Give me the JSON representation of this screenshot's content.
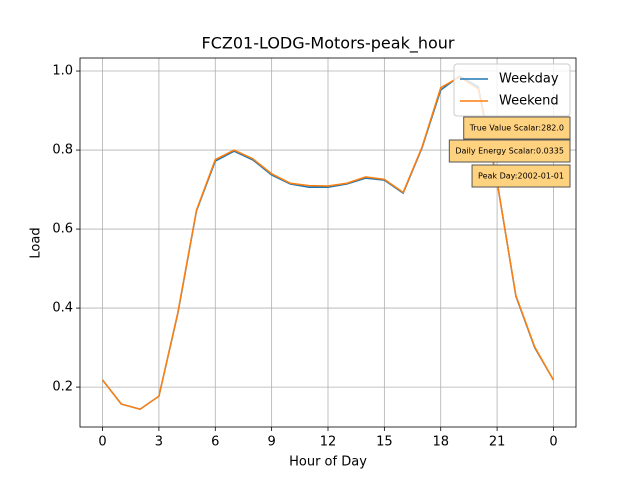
{
  "chart_data": {
    "type": "line",
    "title": "FCZ01-LODG-Motors-peak_hour",
    "x_label": "Hour of Day",
    "y_label": "Load",
    "x": [
      0,
      1,
      2,
      3,
      4,
      5,
      6,
      7,
      8,
      9,
      10,
      11,
      12,
      13,
      14,
      15,
      16,
      17,
      18,
      19,
      20,
      21,
      22,
      23,
      24
    ],
    "series": [
      {
        "name": "Weekday",
        "color": "#1f77b4",
        "values": [
          0.218,
          0.157,
          0.144,
          0.177,
          0.385,
          0.646,
          0.772,
          0.797,
          0.775,
          0.737,
          0.714,
          0.706,
          0.706,
          0.714,
          0.729,
          0.724,
          0.691,
          0.805,
          0.952,
          0.987,
          0.96,
          0.72,
          0.43,
          0.3,
          0.218
        ]
      },
      {
        "name": "Weekend",
        "color": "#ff7f0e",
        "values": [
          0.218,
          0.157,
          0.144,
          0.177,
          0.387,
          0.648,
          0.776,
          0.8,
          0.778,
          0.74,
          0.716,
          0.71,
          0.709,
          0.716,
          0.732,
          0.726,
          0.693,
          0.807,
          0.958,
          0.985,
          0.955,
          0.72,
          0.432,
          0.302,
          0.218
        ]
      }
    ],
    "xlim": [
      -1.2,
      25.2
    ],
    "ylim": [
      0.099,
      1.033
    ],
    "xticks": [
      0,
      3,
      6,
      9,
      12,
      15,
      18,
      21,
      {
        "value": 24,
        "label": "0"
      }
    ],
    "yticks": [
      0.2,
      0.4,
      0.6,
      0.8,
      {
        "value": 1,
        "label": "1.0"
      }
    ],
    "grid": true,
    "legend": "upper right",
    "annotations": [
      "True Value Scalar:282.0",
      "Daily Energy Scalar:0.0335",
      "Peak Day:2002-01-01"
    ]
  }
}
